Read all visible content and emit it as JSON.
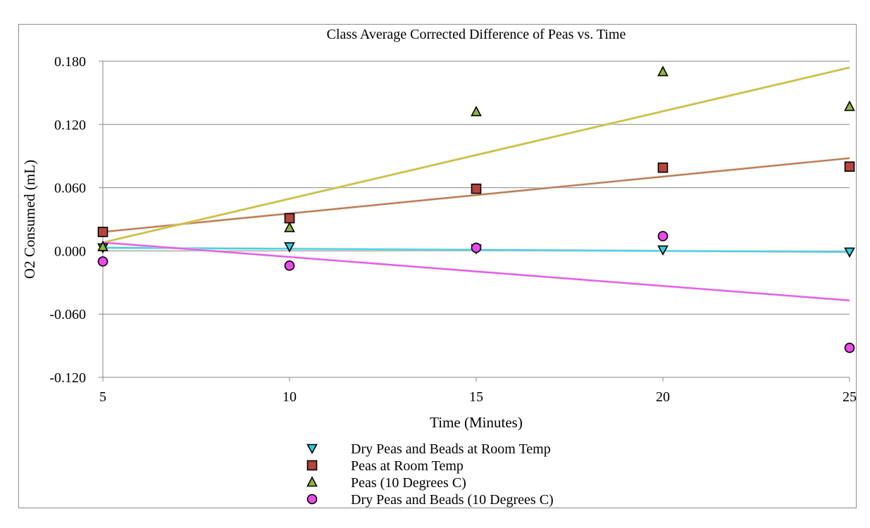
{
  "chart_data": {
    "type": "scatter",
    "title": "Class Average Corrected Difference of Peas vs. Time",
    "xlabel": "Time (Minutes)",
    "ylabel": "O2 Consumed (mL)",
    "xlim": [
      5,
      25
    ],
    "ylim": [
      -0.12,
      0.18
    ],
    "x_ticks": [
      "5",
      "10",
      "15",
      "20",
      "25"
    ],
    "y_ticks": [
      "0.180",
      "0.120",
      "0.060",
      "0.000",
      "-0.060",
      "-0.120"
    ],
    "y_tick_values": [
      0.18,
      0.12,
      0.06,
      0.0,
      -0.06,
      -0.12
    ],
    "x_tick_values": [
      5,
      10,
      15,
      20,
      25
    ],
    "grid": true,
    "legend_position": "bottom",
    "series": [
      {
        "name": "Dry Peas and Beads at Room Temp",
        "marker": "triangle-down",
        "color": "#33ccdd",
        "trendline_color": "#3fd3e6",
        "x": [
          5,
          10,
          15,
          20,
          25
        ],
        "y": [
          0.003,
          0.004,
          0.002,
          0.001,
          -0.001
        ],
        "trendline": [
          [
            5,
            0.003
          ],
          [
            25,
            -0.001
          ]
        ]
      },
      {
        "name": "Peas at Room Temp",
        "marker": "square",
        "color": "#b4463e",
        "trendline_color": "#c0774a",
        "x": [
          5,
          10,
          15,
          20,
          25
        ],
        "y": [
          0.018,
          0.031,
          0.059,
          0.079,
          0.08
        ],
        "trendline": [
          [
            5,
            0.018
          ],
          [
            25,
            0.088
          ]
        ]
      },
      {
        "name": "Peas (10 Degrees C)",
        "marker": "triangle-up",
        "color": "#93b441",
        "trendline_color": "#cdbf2a",
        "x": [
          5,
          10,
          15,
          20,
          25
        ],
        "y": [
          0.004,
          0.022,
          0.132,
          0.17,
          0.137
        ],
        "trendline": [
          [
            5,
            0.008
          ],
          [
            25,
            0.174
          ]
        ]
      },
      {
        "name": "Dry Peas and Beads (10 Degrees C)",
        "marker": "circle",
        "color": "#e94ae9",
        "trendline_color": "#e957ec",
        "x": [
          5,
          10,
          15,
          20,
          25
        ],
        "y": [
          -0.01,
          -0.014,
          0.003,
          0.014,
          -0.092
        ],
        "trendline": [
          [
            5,
            0.008
          ],
          [
            25,
            -0.047
          ]
        ]
      }
    ]
  }
}
